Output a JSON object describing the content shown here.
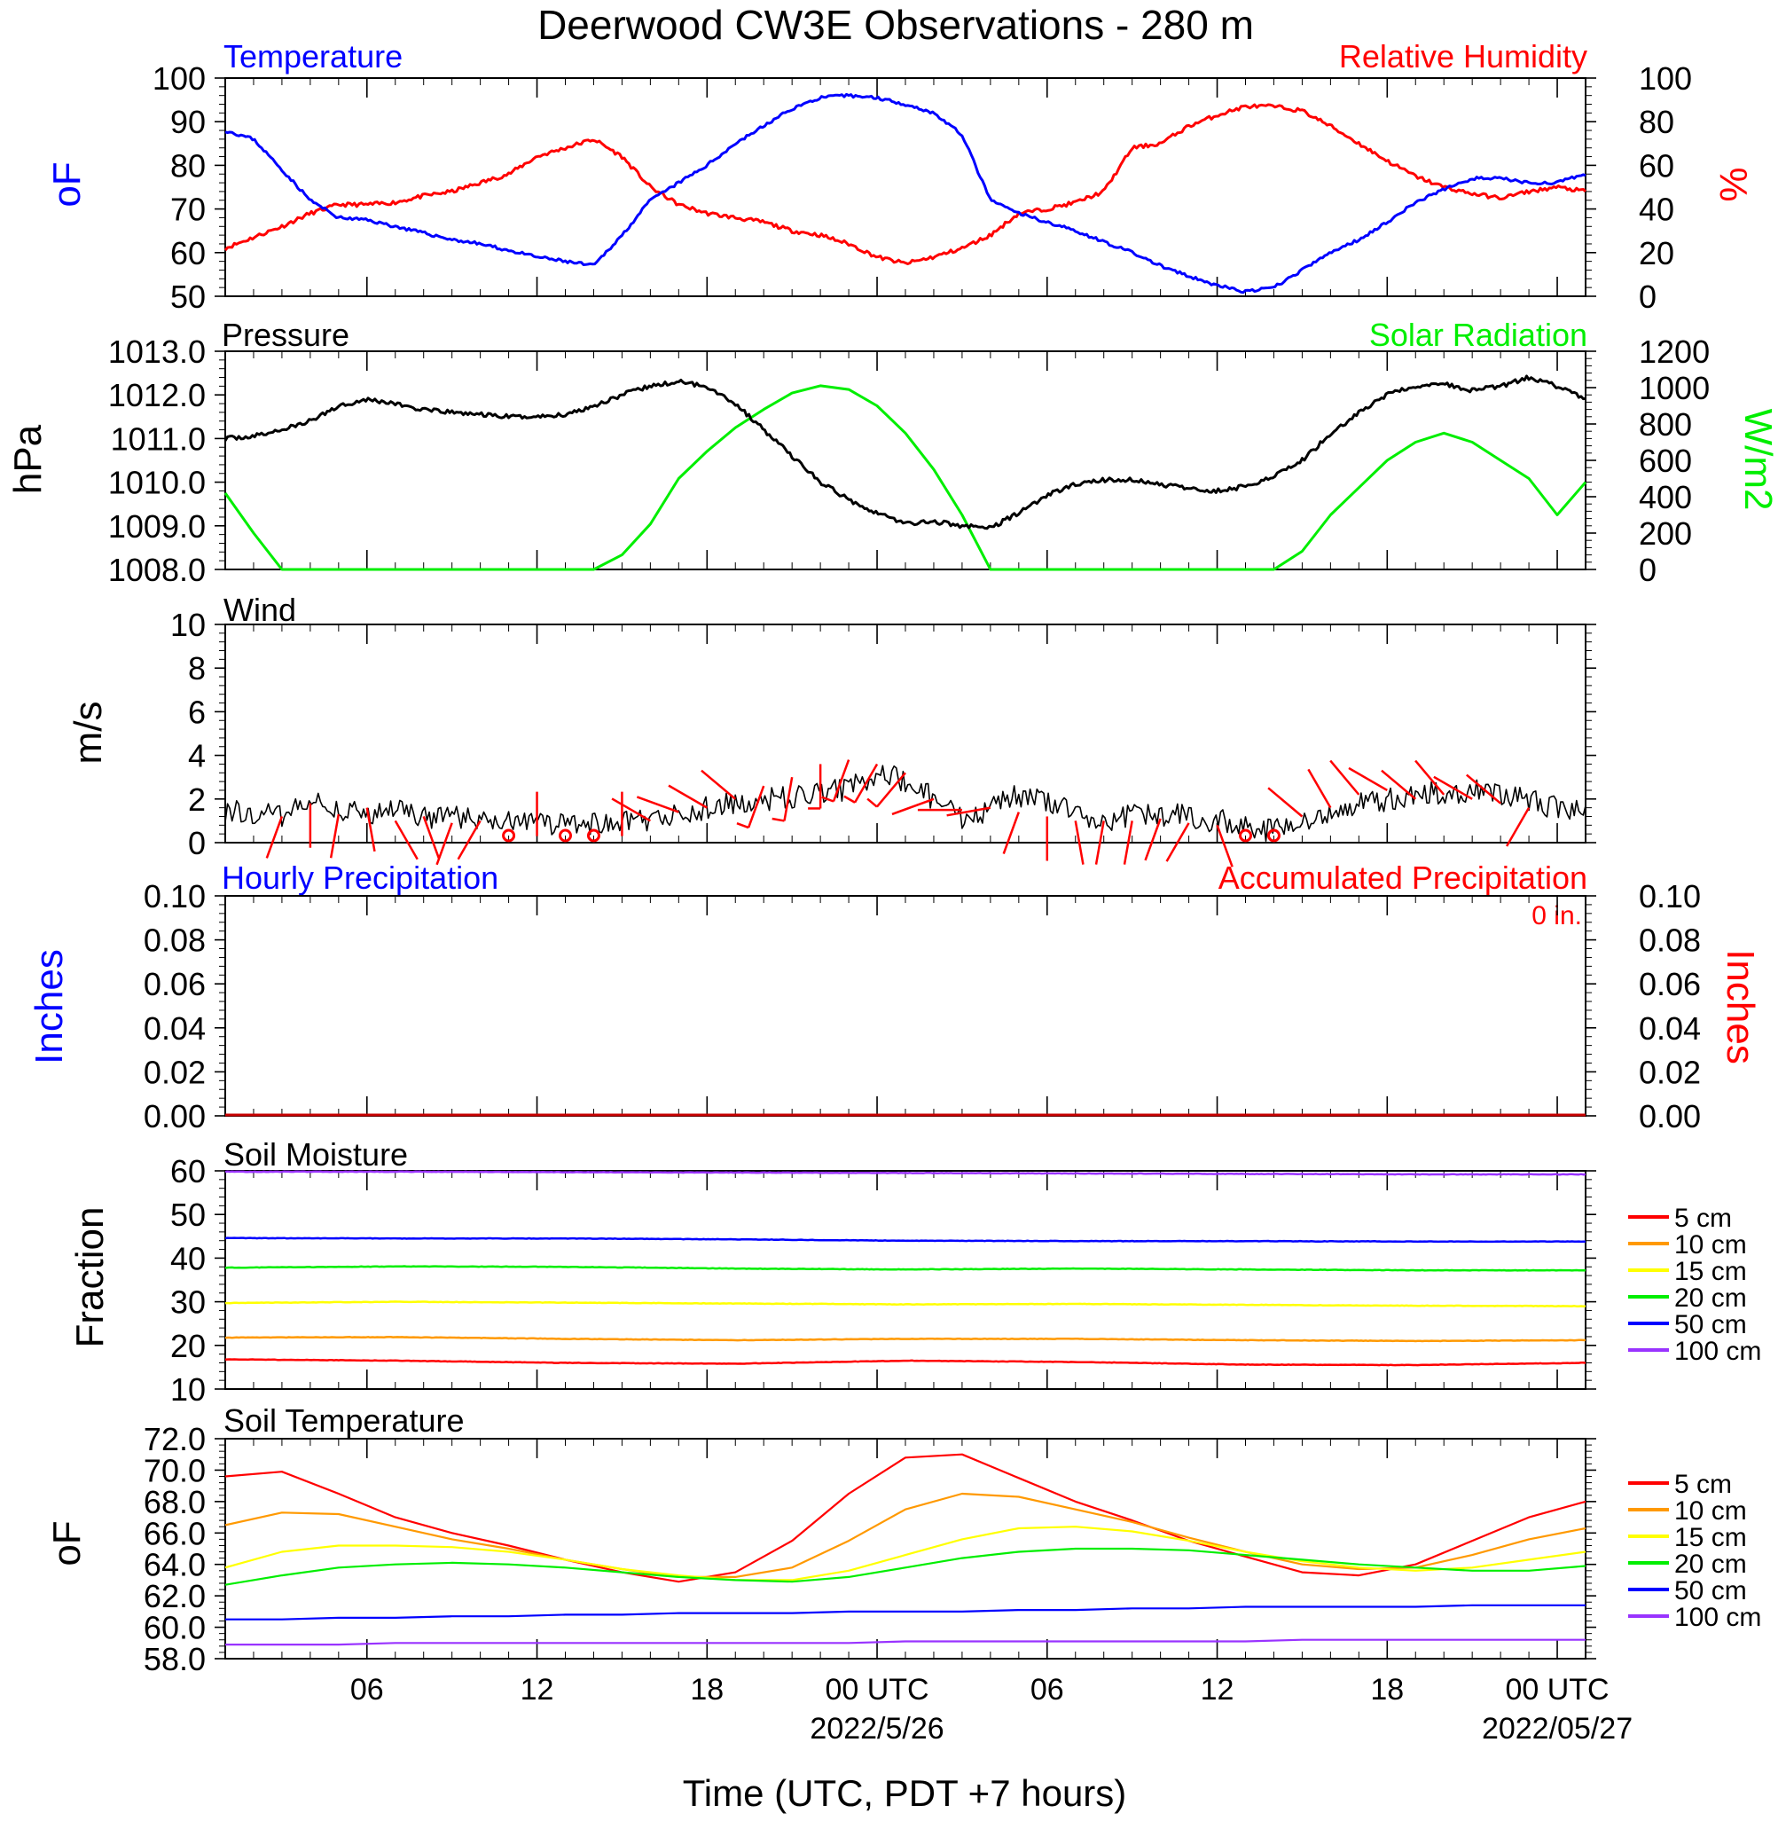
{
  "title": "Deerwood CW3E Observations - 280 m",
  "time_axis": {
    "label": "Time (UTC, PDT +7 hours)",
    "range_hours": [
      0,
      48
    ],
    "ticks": [
      {
        "hour": 5,
        "label": "06"
      },
      {
        "hour": 11,
        "label": "12"
      },
      {
        "hour": 17,
        "label": "18"
      },
      {
        "hour": 23,
        "label": "00 UTC"
      },
      {
        "hour": 29,
        "label": "06"
      },
      {
        "hour": 35,
        "label": "12"
      },
      {
        "hour": 41,
        "label": "18"
      },
      {
        "hour": 47,
        "label": "00 UTC"
      }
    ],
    "dates": [
      {
        "hour": 23,
        "label": "2022/5/26"
      },
      {
        "hour": 47,
        "label": "2022/05/27"
      }
    ]
  },
  "panels": {
    "temp_rh": {
      "left_title": "Temperature",
      "right_title": "Relative Humidity",
      "left_unit": "oF",
      "right_unit": "%"
    },
    "pressure_solar": {
      "left_title": "Pressure",
      "right_title": "Solar Radiation",
      "left_unit": "hPa",
      "right_unit": "W/m2"
    },
    "wind": {
      "title": "Wind",
      "unit": "m/s"
    },
    "precip": {
      "left_title": "Hourly Precipitation",
      "right_title": "Accumulated Precipitation",
      "accum_label": "0 in.",
      "left_unit": "Inches",
      "right_unit": "Inches"
    },
    "soil_moisture": {
      "title": "Soil Moisture",
      "unit": "Fraction"
    },
    "soil_temp": {
      "title": "Soil Temperature",
      "unit": "oF"
    }
  },
  "colors": {
    "temperature": "#0000ff",
    "humidity": "#ff0000",
    "pressure": "#000000",
    "solar": "#00ee00",
    "wind_speed": "#000000",
    "wind_barb": "#ff0000",
    "accum_precip": "#c80000"
  },
  "chart_data": [
    {
      "id": "temp_rh",
      "type": "line",
      "x": [
        0,
        1,
        2,
        3,
        4,
        5,
        6,
        7,
        8,
        9,
        10,
        11,
        12,
        13,
        14,
        15,
        16,
        17,
        18,
        19,
        20,
        21,
        22,
        23,
        24,
        25,
        26,
        27,
        28,
        29,
        30,
        31,
        32,
        33,
        34,
        35,
        36,
        37,
        38,
        39,
        40,
        41,
        42,
        43,
        44,
        45,
        46,
        47,
        48
      ],
      "series": [
        {
          "name": "Temperature",
          "axis": "left",
          "values": [
            88,
            86,
            79,
            72,
            68,
            67.5,
            66,
            64.5,
            63,
            62,
            60.5,
            59,
            58,
            57,
            64,
            72,
            76,
            80,
            85,
            89,
            93,
            95.5,
            96,
            95.5,
            94,
            92,
            87,
            72,
            69,
            67,
            65,
            62.5,
            60,
            57,
            54.5,
            52.5,
            51,
            52,
            56,
            60,
            63,
            67,
            71.5,
            74.5,
            77,
            77,
            76,
            76,
            78
          ]
        },
        {
          "name": "Relative Humidity",
          "axis": "right",
          "values": [
            22,
            27,
            32,
            38,
            42,
            42,
            43,
            46,
            48,
            52,
            56,
            64,
            68,
            72,
            64,
            50,
            42,
            38,
            36,
            34,
            30,
            28,
            24,
            18,
            15,
            18,
            22,
            28,
            38,
            40,
            43,
            48,
            68,
            70,
            78,
            83,
            87,
            87,
            85,
            78,
            70,
            62,
            55,
            50,
            47,
            45,
            48,
            50,
            48
          ]
        }
      ],
      "ylim_left": [
        50,
        100
      ],
      "yticks_left": [
        50,
        60,
        70,
        80,
        90,
        100
      ],
      "ylim_right": [
        0,
        100
      ],
      "yticks_right": [
        0,
        20,
        40,
        60,
        80,
        100
      ]
    },
    {
      "id": "pressure_solar",
      "type": "line",
      "x": [
        0,
        1,
        2,
        3,
        4,
        5,
        6,
        7,
        8,
        9,
        10,
        11,
        12,
        13,
        14,
        15,
        16,
        17,
        18,
        19,
        20,
        21,
        22,
        23,
        24,
        25,
        26,
        27,
        28,
        29,
        30,
        31,
        32,
        33,
        34,
        35,
        36,
        37,
        38,
        39,
        40,
        41,
        42,
        43,
        44,
        45,
        46,
        47,
        48
      ],
      "series": [
        {
          "name": "Pressure",
          "axis": "left",
          "values": [
            1011.0,
            1011.05,
            1011.2,
            1011.4,
            1011.75,
            1011.9,
            1011.8,
            1011.65,
            1011.6,
            1011.55,
            1011.5,
            1011.5,
            1011.55,
            1011.75,
            1012.0,
            1012.2,
            1012.3,
            1012.2,
            1011.8,
            1011.2,
            1010.6,
            1010.0,
            1009.6,
            1009.3,
            1009.05,
            1009.1,
            1009.0,
            1008.95,
            1009.3,
            1009.7,
            1009.95,
            1010.05,
            1010.05,
            1009.95,
            1009.85,
            1009.8,
            1009.9,
            1010.15,
            1010.5,
            1011.1,
            1011.6,
            1012.0,
            1012.2,
            1012.25,
            1012.1,
            1012.2,
            1012.4,
            1012.2,
            1011.9
          ]
        },
        {
          "name": "Solar Radiation",
          "axis": "right",
          "values": [
            420,
            200,
            0,
            0,
            0,
            0,
            0,
            0,
            0,
            0,
            0,
            0,
            0,
            0,
            80,
            250,
            500,
            650,
            780,
            880,
            970,
            1010,
            990,
            900,
            750,
            550,
            300,
            0,
            0,
            0,
            0,
            0,
            0,
            0,
            0,
            0,
            0,
            0,
            100,
            300,
            450,
            600,
            700,
            750,
            700,
            600,
            500,
            300,
            480
          ]
        }
      ],
      "ylim_left": [
        1008.0,
        1013.0
      ],
      "yticks_left": [
        "1008.0",
        "1009.0",
        "1010.0",
        "1011.0",
        "1012.0",
        "1013.0"
      ],
      "ylim_right": [
        0,
        1200
      ],
      "yticks_right": [
        0,
        200,
        400,
        600,
        800,
        1000,
        1200
      ]
    },
    {
      "id": "wind",
      "type": "line",
      "x": [
        0,
        1,
        2,
        3,
        4,
        5,
        6,
        7,
        8,
        9,
        10,
        11,
        12,
        13,
        14,
        15,
        16,
        17,
        18,
        19,
        20,
        21,
        22,
        23,
        24,
        25,
        26,
        27,
        28,
        29,
        30,
        31,
        32,
        33,
        34,
        35,
        36,
        37,
        38,
        39,
        40,
        41,
        42,
        43,
        44,
        45,
        46,
        47,
        48
      ],
      "series": [
        {
          "name": "Wind speed",
          "values": [
            1.5,
            1.4,
            1.2,
            1.8,
            1.6,
            1.2,
            1.5,
            1.1,
            1.2,
            1.0,
            1.0,
            0.9,
            0.9,
            0.8,
            0.9,
            1.0,
            1.3,
            1.6,
            1.8,
            2.0,
            2.1,
            2.3,
            2.5,
            3.2,
            2.8,
            2.0,
            1.0,
            1.5,
            2.2,
            1.8,
            1.4,
            1.0,
            1.2,
            1.3,
            1.2,
            1.0,
            0.8,
            0.5,
            0.9,
            1.4,
            1.8,
            2.0,
            2.2,
            2.3,
            2.4,
            2.2,
            1.9,
            1.6,
            1.5
          ]
        }
      ],
      "ylim": [
        0,
        10
      ],
      "yticks": [
        0,
        2,
        4,
        6,
        8,
        10
      ],
      "barbs_hours": [
        2,
        3,
        4,
        5,
        6,
        7,
        8,
        9,
        10,
        11,
        12,
        13,
        14,
        15,
        16,
        17,
        18,
        19,
        20,
        21,
        22,
        23,
        24,
        25,
        26,
        27,
        28,
        29,
        30,
        31,
        32,
        33,
        34,
        35,
        36,
        37,
        38,
        39,
        40,
        41,
        42,
        43,
        44,
        45,
        46
      ],
      "barbs_speed": [
        1.2,
        1.8,
        1.3,
        1.6,
        1.0,
        1.2,
        0.9,
        1.0,
        1.1,
        0.3,
        0.3,
        0.3,
        0.3,
        1.0,
        1.4,
        1.6,
        2.0,
        2.6,
        3.0,
        3.6,
        3.8,
        3.6,
        3.2,
        2.0,
        1.5,
        1.6,
        1.4,
        1.2,
        1.0,
        1.0,
        1.0,
        1.1,
        0.9,
        0.8,
        0.3,
        0.3,
        1.2,
        1.6,
        2.2,
        2.4,
        2.0,
        2.2,
        2.0,
        1.8,
        1.6
      ],
      "barbs_dir": [
        200,
        180,
        190,
        170,
        150,
        160,
        200,
        210,
        220,
        0,
        330,
        0,
        0,
        300,
        290,
        300,
        310,
        200,
        190,
        180,
        200,
        210,
        220,
        250,
        270,
        260,
        200,
        180,
        170,
        190,
        190,
        200,
        210,
        160,
        0,
        0,
        310,
        330,
        320,
        300,
        310,
        320,
        300,
        310,
        210
      ],
      "calm_hours": [
        10,
        12,
        13,
        36,
        37
      ]
    },
    {
      "id": "precip",
      "type": "line",
      "x": [
        0,
        48
      ],
      "series": [
        {
          "name": "Hourly Precipitation",
          "axis": "left",
          "values": [
            0,
            0
          ]
        },
        {
          "name": "Accumulated Precipitation",
          "axis": "right",
          "values": [
            0,
            0
          ]
        }
      ],
      "ylim": [
        0,
        0.1
      ],
      "yticks": [
        "0.00",
        "0.02",
        "0.04",
        "0.06",
        "0.08",
        "0.10"
      ]
    },
    {
      "id": "soil_moisture",
      "type": "line",
      "x": [
        0,
        6,
        12,
        18,
        24,
        30,
        36,
        42,
        48
      ],
      "series": [
        {
          "name": "5 cm",
          "color": "#ff0000",
          "values": [
            16.8,
            16.5,
            16.0,
            15.8,
            16.5,
            16.2,
            15.6,
            15.5,
            16.0
          ]
        },
        {
          "name": "10 cm",
          "color": "#ff9900",
          "values": [
            21.8,
            21.9,
            21.5,
            21.2,
            21.5,
            21.5,
            21.2,
            21.0,
            21.2
          ]
        },
        {
          "name": "15 cm",
          "color": "#ffff00",
          "values": [
            29.7,
            30.0,
            29.8,
            29.6,
            29.4,
            29.5,
            29.3,
            29.1,
            29.0
          ]
        },
        {
          "name": "20 cm",
          "color": "#00ee00",
          "values": [
            37.8,
            38.1,
            38.0,
            37.6,
            37.4,
            37.6,
            37.4,
            37.2,
            37.2
          ]
        },
        {
          "name": "50 cm",
          "color": "#0000ff",
          "values": [
            44.6,
            44.5,
            44.5,
            44.3,
            44.0,
            43.9,
            43.9,
            43.8,
            43.8
          ]
        },
        {
          "name": "100 cm",
          "color": "#9933ff",
          "values": [
            59.8,
            59.8,
            59.7,
            59.6,
            59.5,
            59.4,
            59.3,
            59.2,
            59.2
          ]
        }
      ],
      "ylim": [
        10,
        60
      ],
      "yticks": [
        10,
        20,
        30,
        40,
        50,
        60
      ]
    },
    {
      "id": "soil_temp",
      "type": "line",
      "x": [
        0,
        2,
        4,
        6,
        8,
        10,
        12,
        14,
        16,
        18,
        20,
        22,
        24,
        26,
        28,
        30,
        32,
        34,
        36,
        38,
        40,
        42,
        44,
        46,
        48
      ],
      "series": [
        {
          "name": "5 cm",
          "color": "#ff0000",
          "values": [
            69.6,
            69.9,
            68.5,
            67.0,
            66.0,
            65.2,
            64.3,
            63.5,
            62.9,
            63.5,
            65.5,
            68.5,
            70.8,
            71.0,
            69.5,
            68.0,
            66.8,
            65.5,
            64.5,
            63.5,
            63.3,
            64.0,
            65.5,
            67.0,
            68.0
          ]
        },
        {
          "name": "10 cm",
          "color": "#ff9900",
          "values": [
            66.5,
            67.3,
            67.2,
            66.4,
            65.6,
            65.0,
            64.3,
            63.7,
            63.2,
            63.2,
            63.8,
            65.5,
            67.5,
            68.5,
            68.3,
            67.5,
            66.7,
            65.7,
            64.8,
            64.0,
            63.7,
            63.8,
            64.6,
            65.6,
            66.3
          ]
        },
        {
          "name": "15 cm",
          "color": "#ffff00",
          "values": [
            63.8,
            64.8,
            65.2,
            65.2,
            65.1,
            64.8,
            64.3,
            63.7,
            63.3,
            63.0,
            63.0,
            63.6,
            64.6,
            65.6,
            66.3,
            66.4,
            66.1,
            65.5,
            64.8,
            64.2,
            63.8,
            63.6,
            63.8,
            64.3,
            64.8
          ]
        },
        {
          "name": "20 cm",
          "color": "#00ee00",
          "values": [
            62.7,
            63.3,
            63.8,
            64.0,
            64.1,
            64.0,
            63.8,
            63.5,
            63.2,
            63.0,
            62.9,
            63.2,
            63.8,
            64.4,
            64.8,
            65.0,
            65.0,
            64.9,
            64.6,
            64.3,
            64.0,
            63.8,
            63.6,
            63.6,
            63.9
          ]
        },
        {
          "name": "50 cm",
          "color": "#0000ff",
          "values": [
            60.5,
            60.5,
            60.6,
            60.6,
            60.7,
            60.7,
            60.8,
            60.8,
            60.9,
            60.9,
            60.9,
            61.0,
            61.0,
            61.0,
            61.1,
            61.1,
            61.2,
            61.2,
            61.3,
            61.3,
            61.3,
            61.3,
            61.4,
            61.4,
            61.4
          ]
        },
        {
          "name": "100 cm",
          "color": "#9933ff",
          "values": [
            58.9,
            58.9,
            58.9,
            59.0,
            59.0,
            59.0,
            59.0,
            59.0,
            59.0,
            59.0,
            59.0,
            59.0,
            59.1,
            59.1,
            59.1,
            59.1,
            59.1,
            59.1,
            59.1,
            59.2,
            59.2,
            59.2,
            59.2,
            59.2,
            59.2
          ]
        }
      ],
      "ylim": [
        58.0,
        72.0
      ],
      "yticks": [
        "58.0",
        "60.0",
        "62.0",
        "64.0",
        "66.0",
        "68.0",
        "70.0",
        "72.0"
      ]
    }
  ]
}
